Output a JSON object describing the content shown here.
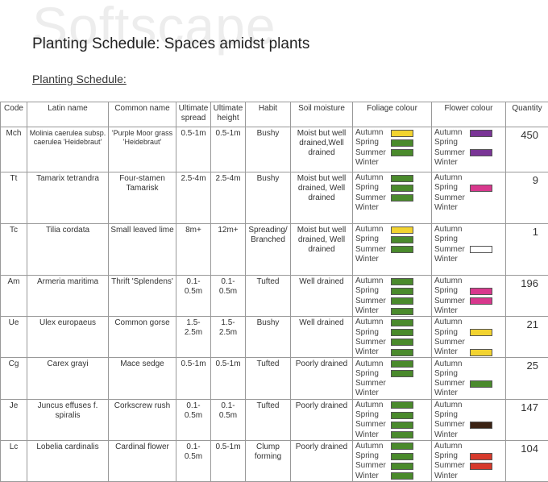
{
  "watermark": "Softscape",
  "title": "Planting Schedule: Spaces amidst plants",
  "subtitle": "Planting Schedule:",
  "headers": [
    "Code",
    "Latin name",
    "Common name",
    "Ultimate spread",
    "Ultimate height",
    "Habit",
    "Soil moisture",
    "Foliage colour",
    "Flower colour",
    "Quantity"
  ],
  "seasons": [
    "Autumn",
    "Spring",
    "Summer",
    "Winter"
  ],
  "rows": [
    {
      "code": "Mch",
      "latin": "Molinia caerulea subsp. caerulea 'Heidebraut'",
      "common": "'Purple Moor grass 'Heidebraut'",
      "spread": "0.5-1m",
      "height": "0.5-1m",
      "habit": "Bushy",
      "soil": "Moist but well drained,Well drained",
      "foliage": [
        "#f2d330",
        "#4a8a2c",
        "#4a8a2c",
        null
      ],
      "flower": [
        "#7a3596",
        null,
        "#7a3596",
        null
      ],
      "quantity": "450"
    },
    {
      "code": "Tt",
      "latin": "Tamarix tetrandra",
      "common": "Four-stamen Tamarisk",
      "spread": "2.5-4m",
      "height": "2.5-4m",
      "habit": "Bushy",
      "soil": "Moist but well drained, Well drained",
      "foliage": [
        "#4a8a2c",
        "#4a8a2c",
        "#4a8a2c",
        null
      ],
      "flower": [
        null,
        "#d8388d",
        null,
        null
      ],
      "quantity": "9"
    },
    {
      "code": "Tc",
      "latin": "Tilia cordata",
      "common": "Small leaved lime",
      "spread": "8m+",
      "height": "12m+",
      "habit": "Spreading/ Branched",
      "soil": "Moist but well drained, Well drained",
      "foliage": [
        "#f2d330",
        "#4a8a2c",
        "#4a8a2c",
        null
      ],
      "flower": [
        null,
        null,
        "#ffffff",
        null
      ],
      "quantity": "1"
    },
    {
      "code": "Am",
      "latin": "Armeria maritima",
      "common": "Thrift 'Splendens'",
      "spread": "0.1-0.5m",
      "height": "0.1-0.5m",
      "habit": "Tufted",
      "soil": "Well drained",
      "foliage": [
        "#4a8a2c",
        "#4a8a2c",
        "#4a8a2c",
        "#4a8a2c"
      ],
      "flower": [
        null,
        "#d8388d",
        "#d8388d",
        null
      ],
      "quantity": "196"
    },
    {
      "code": "Ue",
      "latin": "Ulex europaeus",
      "common": "Common gorse",
      "spread": "1.5-2.5m",
      "height": "1.5-2.5m",
      "habit": "Bushy",
      "soil": "Well drained",
      "foliage": [
        "#4a8a2c",
        "#4a8a2c",
        "#4a8a2c",
        "#4a8a2c"
      ],
      "flower": [
        null,
        "#f2d330",
        null,
        "#f2d330"
      ],
      "quantity": "21"
    },
    {
      "code": "Cg",
      "latin": "Carex grayi",
      "common": "Mace sedge",
      "spread": "0.5-1m",
      "height": "0.5-1m",
      "habit": "Tufted",
      "soil": "Poorly drained",
      "foliage": [
        "#4a8a2c",
        "#4a8a2c",
        null,
        null
      ],
      "flower": [
        null,
        null,
        "#4a8a2c",
        null
      ],
      "quantity": "25"
    },
    {
      "code": "Je",
      "latin": "Juncus effuses f. spiralis",
      "common": "Corkscrew rush",
      "spread": "0.1-0.5m",
      "height": "0.1-0.5m",
      "habit": "Tufted",
      "soil": "Poorly drained",
      "foliage": [
        "#4a8a2c",
        "#4a8a2c",
        "#4a8a2c",
        "#4a8a2c"
      ],
      "flower": [
        null,
        null,
        "#3b2314",
        null
      ],
      "quantity": "147"
    },
    {
      "code": "Lc",
      "latin": "Lobelia cardinalis",
      "common": "Cardinal flower",
      "spread": "0.1-0.5m",
      "height": "0.5-1m",
      "habit": "Clump forming",
      "soil": "Poorly drained",
      "foliage": [
        "#4a8a2c",
        "#4a8a2c",
        "#4a8a2c",
        "#4a8a2c"
      ],
      "flower": [
        null,
        "#d63a2c",
        "#d63a2c",
        null
      ],
      "quantity": "104"
    }
  ]
}
